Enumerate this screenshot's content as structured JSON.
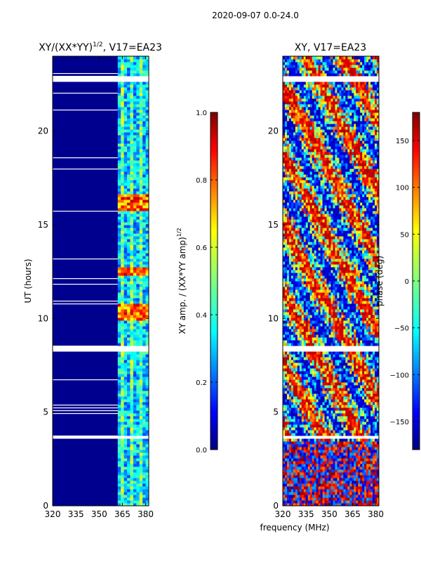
{
  "figure": {
    "suptitle": "2020-09-07 0.0-24.0",
    "xlabel_shared": "frequency (MHz)"
  },
  "chart_data": [
    {
      "type": "heatmap",
      "title": "XY/(XX*YY)",
      "title_exponent": "1/2",
      "title_suffix": ", V17=EA23",
      "xlabel": "",
      "ylabel": "UT (hours)",
      "xlim": [
        320,
        382
      ],
      "ylim": [
        0,
        24
      ],
      "x_ticks": [
        320,
        335,
        350,
        365,
        380
      ],
      "y_ticks": [
        0,
        5,
        10,
        15,
        20
      ],
      "colorbar": {
        "label": "XY amp. / (XX*YY amp)",
        "label_exponent": "1/2",
        "range": [
          0.0,
          1.0
        ],
        "ticks": [
          "0.0",
          "0.2",
          "0.4",
          "0.6",
          "0.8",
          "1.0"
        ],
        "tick_values": [
          0.0,
          0.2,
          0.4,
          0.6,
          0.8,
          1.0
        ]
      },
      "gaps_ut_hours": [
        [
          8.2,
          8.55
        ],
        [
          3.55,
          3.75
        ],
        [
          22.6,
          22.9
        ]
      ],
      "active_band_mhz": [
        362,
        382
      ],
      "high_amplitude_ut_hours": [
        [
          9.9,
          10.8
        ],
        [
          12.35,
          12.75
        ],
        [
          15.8,
          16.6
        ]
      ]
    },
    {
      "type": "heatmap",
      "title": "XY, V17=EA23",
      "xlabel": "",
      "ylabel": "",
      "xlim": [
        320,
        382
      ],
      "ylim": [
        0,
        24
      ],
      "x_ticks": [
        320,
        335,
        350,
        365,
        380
      ],
      "y_ticks": [
        0,
        5,
        10,
        15,
        20
      ],
      "colorbar": {
        "label": "phase (deg)",
        "range": [
          -180,
          180
        ],
        "ticks": [
          "−150",
          "−100",
          "−50",
          "0",
          "50",
          "100",
          "150"
        ],
        "tick_values": [
          -150,
          -100,
          -50,
          0,
          50,
          100,
          150
        ]
      },
      "gaps_ut_hours": [
        [
          8.2,
          8.55
        ],
        [
          3.55,
          3.75
        ],
        [
          22.6,
          22.9
        ]
      ]
    }
  ],
  "colors": {
    "jet": [
      "#00007f",
      "#0000ff",
      "#007fff",
      "#00ffff",
      "#7fff7f",
      "#ffff00",
      "#ff7f00",
      "#ff0000",
      "#7f0000"
    ],
    "background_low": "#00008f",
    "gap": "#ffffff"
  }
}
